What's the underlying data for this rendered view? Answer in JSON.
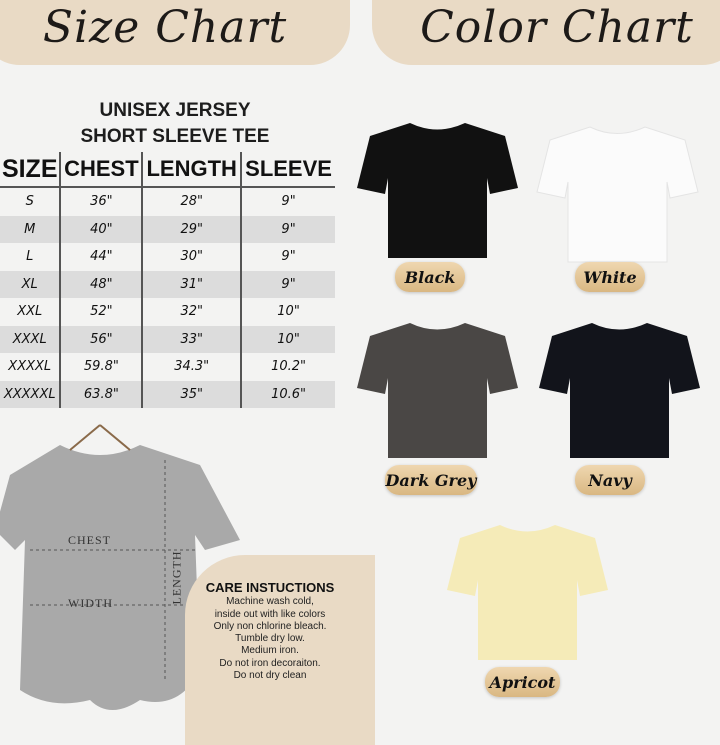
{
  "size_chart": {
    "title": "Size Chart",
    "subtitle_line1": "UNISEX JERSEY",
    "subtitle_line2": "SHORT SLEEVE TEE",
    "headers": [
      "SIZE",
      "CHEST",
      "LENGTH",
      "SLEEVE"
    ],
    "rows": [
      [
        "S",
        "36\"",
        "28\"",
        "9\""
      ],
      [
        "M",
        "40\"",
        "29\"",
        "9\""
      ],
      [
        "L",
        "44\"",
        "30\"",
        "9\""
      ],
      [
        "XL",
        "48\"",
        "31\"",
        "9\""
      ],
      [
        "XXL",
        "52\"",
        "32\"",
        "10\""
      ],
      [
        "XXXL",
        "56\"",
        "33\"",
        "10\""
      ],
      [
        "XXXXL",
        "59.8\"",
        "34.3\"",
        "10.2\""
      ],
      [
        "XXXXXL",
        "63.8\"",
        "35\"",
        "10.6\""
      ]
    ],
    "diagram": {
      "chest": "CHEST",
      "width": "WIDTH",
      "length": "LENGTH",
      "shirt_color": "#a9a9a9"
    }
  },
  "care": {
    "title": "CARE INSTUCTIONS",
    "lines": [
      "Machine wash cold,",
      "inside out with like colors",
      "Only non chlorine bleach.",
      "Tumble dry low.",
      "Medium iron.",
      "Do not iron decoraiton.",
      "Do not dry clean"
    ]
  },
  "color_chart": {
    "title": "Color Chart",
    "colors": [
      {
        "name": "Black",
        "hex": "#111111"
      },
      {
        "name": "White",
        "hex": "#fbfbfb"
      },
      {
        "name": "Dark Grey",
        "hex": "#4a4745"
      },
      {
        "name": "Navy",
        "hex": "#12141b"
      },
      {
        "name": "Apricot",
        "hex": "#f5ebb8"
      }
    ]
  }
}
